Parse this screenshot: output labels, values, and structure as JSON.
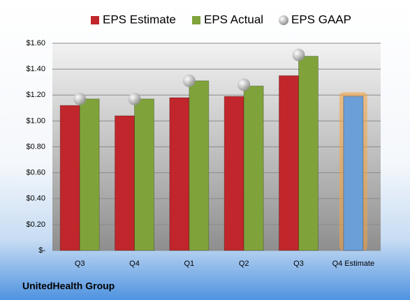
{
  "chart_data": {
    "type": "bar",
    "categories": [
      "Q3",
      "Q4",
      "Q1",
      "Q2",
      "Q3",
      "Q4 Estimate"
    ],
    "series": [
      {
        "name": "EPS Estimate",
        "color": "#c0262b",
        "values": [
          1.12,
          1.04,
          1.18,
          1.19,
          1.35,
          1.19
        ],
        "colors": [
          "#c0262b",
          "#c0262b",
          "#c0262b",
          "#c0262b",
          "#c0262b",
          "#6a9fd8"
        ]
      },
      {
        "name": "EPS Actual",
        "color": "#7fa33a",
        "values": [
          1.17,
          1.17,
          1.31,
          1.27,
          1.5,
          null
        ]
      },
      {
        "name": "EPS GAAP",
        "color": "#b4b4b4",
        "marker": "sphere",
        "values": [
          1.17,
          1.17,
          1.31,
          1.28,
          1.51,
          null
        ]
      }
    ],
    "ylim": [
      0,
      1.6
    ],
    "yticks": [
      {
        "value": 0,
        "label": "$-"
      },
      {
        "value": 0.2,
        "label": "$0.20"
      },
      {
        "value": 0.4,
        "label": "$0.40"
      },
      {
        "value": 0.6,
        "label": "$0.60"
      },
      {
        "value": 0.8,
        "label": "$0.80"
      },
      {
        "value": 1.0,
        "label": "$1.00"
      },
      {
        "value": 1.2,
        "label": "$1.20"
      },
      {
        "value": 1.4,
        "label": "$1.40"
      },
      {
        "value": 1.6,
        "label": "$1.60"
      }
    ],
    "grid": true,
    "footer": "UnitedHealth Group"
  }
}
